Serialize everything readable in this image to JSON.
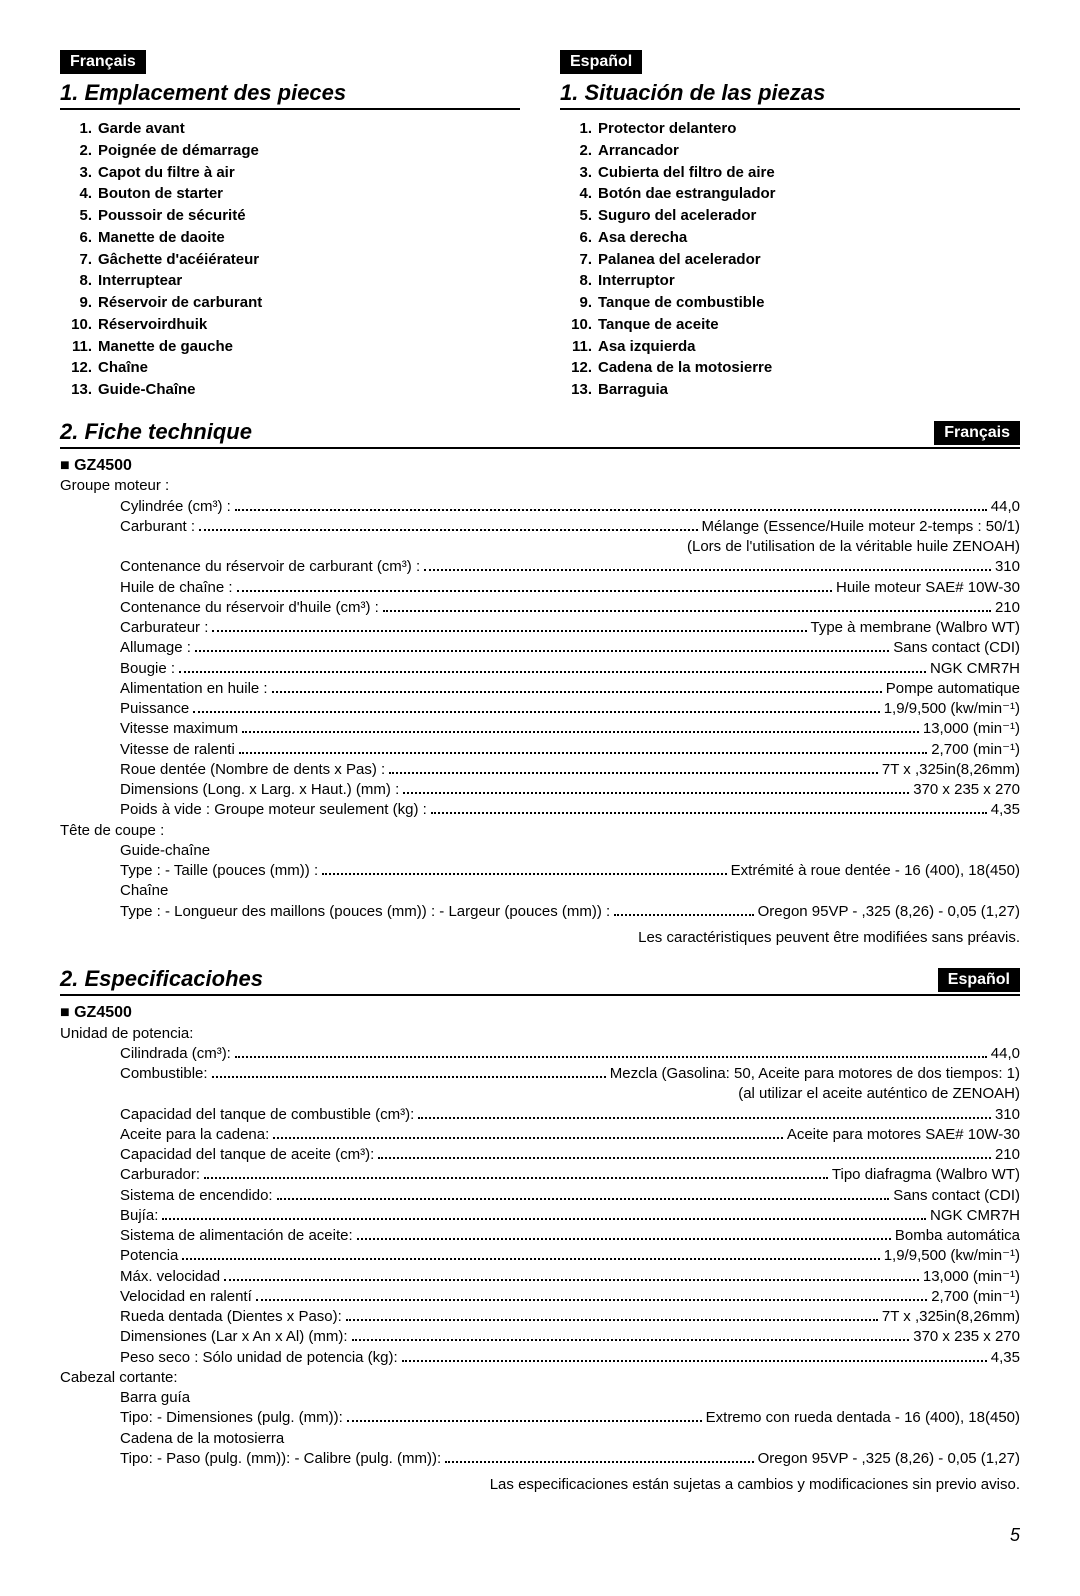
{
  "fr": {
    "badge": "Français",
    "sec1_title": "1. Emplacement des pieces",
    "parts": [
      "Garde avant",
      "Poignée de démarrage",
      "Capot du filtre à air",
      "Bouton de starter",
      "Poussoir de sécurité",
      "Manette de daoite",
      "Gâchette d'acéiérateur",
      "Interruptear",
      "Réservoir de carburant",
      "Réservoirdhuik",
      "Manette de gauche",
      "Chaîne",
      "Guide-Chaîne"
    ],
    "sec2_title": "2. Fiche technique",
    "model": "■ GZ4500",
    "group1": "Groupe moteur :",
    "rows": [
      {
        "l": "Cylindrée (cm³) :",
        "v": "44,0"
      },
      {
        "l": "Carburant :",
        "v": "Mélange (Essence/Huile moteur 2-temps : 50/1)"
      },
      {
        "note_right": "(Lors de l'utilisation de la véritable huile ZENOAH)"
      },
      {
        "l": "Contenance du réservoir de carburant (cm³) :",
        "v": "310"
      },
      {
        "l": "Huile de chaîne :",
        "v": "Huile moteur SAE# 10W-30"
      },
      {
        "l": "Contenance du réservoir d'huile (cm³) :",
        "v": "210"
      },
      {
        "l": "Carburateur :",
        "v": "Type à membrane (Walbro WT)"
      },
      {
        "l": "Allumage :",
        "v": "Sans contact (CDI)"
      },
      {
        "l": "Bougie :",
        "v": "NGK CMR7H"
      },
      {
        "l": "Alimentation en huile :",
        "v": "Pompe automatique"
      },
      {
        "l": "Puissance",
        "v": "1,9/9,500 (kw/min⁻¹)"
      },
      {
        "l": "Vitesse maximum",
        "v": "13,000 (min⁻¹)"
      },
      {
        "l": "Vitesse de ralenti",
        "v": "2,700 (min⁻¹)"
      },
      {
        "l": "Roue dentée (Nombre de dents x Pas) :",
        "v": "7T x ,325in(8,26mm)"
      },
      {
        "l": "Dimensions (Long. x Larg. x Haut.) (mm) :",
        "v": "370 x 235 x 270"
      },
      {
        "l": "Poids à vide : Groupe moteur seulement (kg) :",
        "v": "4,35"
      }
    ],
    "group2": "Tête de coupe :",
    "sub1": "Guide-chaîne",
    "row_gb": {
      "l": "Type : - Taille (pouces (mm)) :",
      "v": "Extrémité à roue dentée - 16 (400), 18(450)"
    },
    "sub2": "Chaîne",
    "row_ch": {
      "l": "Type : - Longueur des maillons (pouces (mm)) : - Largeur (pouces (mm)) :",
      "v": "Oregon 95VP - ,325 (8,26) - 0,05 (1,27)"
    },
    "footnote": "Les caractéristiques peuvent être modifiées sans préavis."
  },
  "es": {
    "badge": "Español",
    "sec1_title": "1. Situación de las piezas",
    "parts": [
      "Protector delantero",
      "Arrancador",
      "Cubierta del filtro de aire",
      "Botón dae estrangulador",
      "Suguro del acelerador",
      "Asa derecha",
      "Palanea del acelerador",
      "Interruptor",
      "Tanque de combustible",
      "Tanque de aceite",
      "Asa izquierda",
      "Cadena de la motosierre",
      "Barraguia"
    ],
    "sec2_title": "2. Especificaciohes",
    "model": "■ GZ4500",
    "group1": "Unidad de potencia:",
    "rows": [
      {
        "l": "Cilindrada (cm³):",
        "v": "44,0"
      },
      {
        "l": "Combustible:",
        "v": "Mezcla (Gasolina: 50, Aceite para motores de dos tiempos: 1)"
      },
      {
        "note_right": "(al utilizar el aceite auténtico de ZENOAH)"
      },
      {
        "l": "Capacidad del tanque de combustible (cm³):",
        "v": "310"
      },
      {
        "l": "Aceite para la cadena:",
        "v": "Aceite para motores SAE# 10W-30"
      },
      {
        "l": "Capacidad del tanque de aceite (cm³):",
        "v": "210"
      },
      {
        "l": "Carburador:",
        "v": "Tipo diafragma (Walbro WT)"
      },
      {
        "l": "Sistema de encendido:",
        "v": "Sans contact (CDI)"
      },
      {
        "l": "Bujía:",
        "v": "NGK CMR7H"
      },
      {
        "l": "Sistema de alimentación de aceite:",
        "v": "Bomba automática"
      },
      {
        "l": "Potencia",
        "v": "1,9/9,500 (kw/min⁻¹)"
      },
      {
        "l": "Máx. velocidad",
        "v": "13,000 (min⁻¹)"
      },
      {
        "l": "Velocidad en ralentí",
        "v": "2,700 (min⁻¹)"
      },
      {
        "l": "Rueda dentada (Dientes x Paso):",
        "v": "7T x ,325in(8,26mm)"
      },
      {
        "l": "Dimensiones (Lar x An x Al) (mm):",
        "v": "370 x 235 x 270"
      },
      {
        "l": "Peso seco : Sólo unidad de potencia (kg):",
        "v": "4,35"
      }
    ],
    "group2": "Cabezal cortante:",
    "sub1": "Barra guía",
    "row_gb": {
      "l": "Tipo: - Dimensiones (pulg. (mm)):",
      "v": "Extremo con rueda dentada - 16 (400), 18(450)"
    },
    "sub2": "Cadena de la motosierra",
    "row_ch": {
      "l": "Tipo: - Paso (pulg. (mm)): - Calibre (pulg. (mm)):",
      "v": "Oregon 95VP - ,325 (8,26) - 0,05 (1,27)"
    },
    "footnote": "Las especificaciones están sujetas a cambios y modificaciones sin previo aviso."
  },
  "page_num": "5"
}
